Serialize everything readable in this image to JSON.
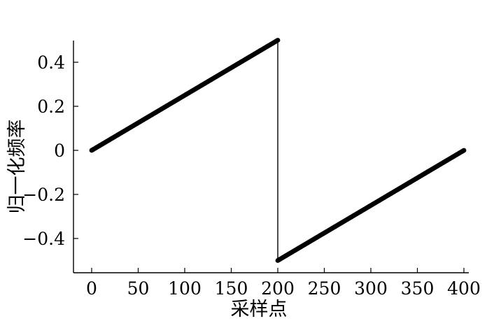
{
  "chart_data": {
    "type": "scatter",
    "title": "",
    "xlabel": "采样点",
    "ylabel": "归一化频率",
    "xlim": [
      -20,
      400
    ],
    "ylim": [
      -0.54,
      0.54
    ],
    "xticks": [
      0,
      50,
      100,
      150,
      200,
      250,
      300,
      350,
      400
    ],
    "xtick_labels": [
      "0",
      "50",
      "100",
      "150",
      "200",
      "250",
      "300",
      "350",
      "400"
    ],
    "yticks": [
      0.4,
      0.2,
      0,
      -0.2,
      -0.4
    ],
    "ytick_labels": [
      "0.4",
      "0.2",
      "0",
      "−0.2",
      "−0.4"
    ],
    "grid": false,
    "legend": "none",
    "color": "#000000",
    "series": [
      {
        "x_start": 0,
        "x_end": 400,
        "x_step": 1,
        "segments": [
          {
            "x_from": 0,
            "x_to": 200,
            "y_from": 0.0,
            "y_to": 0.5
          },
          {
            "x_from": 200,
            "x_to": 400,
            "y_from": -0.5,
            "y_to": 0.0
          }
        ]
      }
    ]
  }
}
